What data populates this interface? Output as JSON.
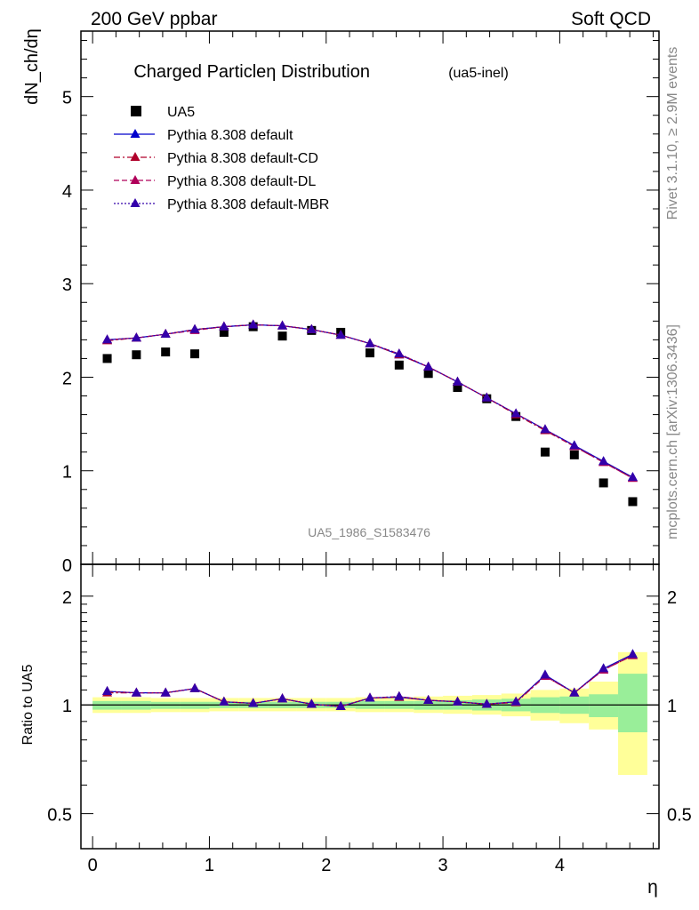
{
  "header": {
    "left": "200 GeV ppbar",
    "right": "Soft QCD"
  },
  "side_text": {
    "rivet": "Rivet 3.1.10, ≥ 2.9M events",
    "mcplots": "mcplots.cern.ch [arXiv:1306.3436]"
  },
  "chart_data": [
    {
      "type": "scatter",
      "title": "Charged Particleη Distribution",
      "subtitle": "(ua5-inel)",
      "ylabel": "dN_ch/dη",
      "xlabel": "η",
      "watermark": "UA5_1986_S1583476",
      "xlim": [
        -0.1,
        4.85
      ],
      "ylim": [
        0,
        5.7
      ],
      "yticks": [
        0,
        1,
        2,
        3,
        4,
        5
      ],
      "xticks": [
        0,
        1,
        2,
        3,
        4
      ],
      "x": [
        0.125,
        0.375,
        0.625,
        0.875,
        1.125,
        1.375,
        1.625,
        1.875,
        2.125,
        2.375,
        2.625,
        2.875,
        3.125,
        3.375,
        3.625,
        3.875,
        4.125,
        4.375,
        4.625
      ],
      "legend": {
        "placement": "top-left",
        "entries": [
          {
            "label": "UA5",
            "color": "#000000",
            "style": "square"
          },
          {
            "label": "Pythia 8.308 default",
            "color": "#0000cc",
            "style": "solid"
          },
          {
            "label": "Pythia 8.308 default-CD",
            "color": "#b0002a",
            "style": "dashdot"
          },
          {
            "label": "Pythia 8.308 default-DL",
            "color": "#b0005a",
            "style": "dashed"
          },
          {
            "label": "Pythia 8.308 default-MBR",
            "color": "#3300aa",
            "style": "dotted"
          }
        ]
      },
      "series": [
        {
          "name": "UA5",
          "values": [
            2.2,
            2.24,
            2.27,
            2.25,
            2.48,
            2.54,
            2.44,
            2.5,
            2.48,
            2.26,
            2.13,
            2.04,
            1.89,
            1.77,
            1.58,
            1.2,
            1.17,
            0.87,
            0.67
          ]
        },
        {
          "name": "Pythia 8.308 default",
          "values": [
            2.4,
            2.42,
            2.46,
            2.51,
            2.54,
            2.56,
            2.55,
            2.51,
            2.45,
            2.36,
            2.24,
            2.11,
            1.95,
            1.78,
            1.61,
            1.44,
            1.27,
            1.1,
            0.93
          ]
        },
        {
          "name": "Pythia 8.308 default-CD",
          "values": [
            2.39,
            2.42,
            2.46,
            2.51,
            2.54,
            2.56,
            2.55,
            2.51,
            2.45,
            2.36,
            2.24,
            2.11,
            1.95,
            1.78,
            1.6,
            1.43,
            1.26,
            1.09,
            0.92
          ]
        },
        {
          "name": "Pythia 8.308 default-DL",
          "values": [
            2.4,
            2.42,
            2.46,
            2.5,
            2.54,
            2.56,
            2.55,
            2.51,
            2.45,
            2.36,
            2.25,
            2.11,
            1.95,
            1.78,
            1.61,
            1.44,
            1.26,
            1.09,
            0.92
          ]
        },
        {
          "name": "Pythia 8.308 default-MBR",
          "values": [
            2.4,
            2.42,
            2.46,
            2.51,
            2.54,
            2.56,
            2.55,
            2.51,
            2.45,
            2.36,
            2.25,
            2.11,
            1.95,
            1.78,
            1.61,
            1.44,
            1.27,
            1.1,
            0.93
          ]
        }
      ]
    },
    {
      "type": "line",
      "ylabel": "Ratio to UA5",
      "xlabel": "η",
      "ylim": [
        0.4,
        2.45
      ],
      "yscale": "log",
      "yticks": [
        0.5,
        1,
        2
      ],
      "xticks": [
        0,
        1,
        2,
        3,
        4
      ],
      "x": [
        0.125,
        0.375,
        0.625,
        0.875,
        1.125,
        1.375,
        1.625,
        1.875,
        2.125,
        2.375,
        2.625,
        2.875,
        3.125,
        3.375,
        3.625,
        3.875,
        4.125,
        4.375,
        4.625
      ],
      "band_yellow": {
        "lo": [
          0.95,
          0.95,
          0.955,
          0.955,
          0.96,
          0.96,
          0.96,
          0.96,
          0.96,
          0.955,
          0.955,
          0.95,
          0.945,
          0.94,
          0.93,
          0.905,
          0.89,
          0.855,
          0.64
        ],
        "hi": [
          1.05,
          1.05,
          1.045,
          1.045,
          1.045,
          1.045,
          1.045,
          1.045,
          1.045,
          1.05,
          1.05,
          1.055,
          1.06,
          1.065,
          1.075,
          1.1,
          1.11,
          1.16,
          1.4
        ]
      },
      "band_green": {
        "lo": [
          0.97,
          0.97,
          0.975,
          0.975,
          0.98,
          0.98,
          0.98,
          0.98,
          0.98,
          0.975,
          0.975,
          0.97,
          0.97,
          0.965,
          0.96,
          0.95,
          0.945,
          0.925,
          0.84
        ],
        "hi": [
          1.025,
          1.025,
          1.02,
          1.02,
          1.02,
          1.02,
          1.02,
          1.02,
          1.02,
          1.025,
          1.025,
          1.025,
          1.03,
          1.035,
          1.04,
          1.05,
          1.055,
          1.07,
          1.22
        ]
      },
      "series": [
        {
          "name": "Pythia 8.308 default",
          "values": [
            1.09,
            1.08,
            1.08,
            1.11,
            1.02,
            1.01,
            1.04,
            1.005,
            0.99,
            1.045,
            1.05,
            1.03,
            1.02,
            1.005,
            1.02,
            1.21,
            1.08,
            1.26,
            1.38
          ]
        },
        {
          "name": "Pythia 8.308 default-CD",
          "values": [
            1.08,
            1.08,
            1.08,
            1.11,
            1.02,
            1.01,
            1.04,
            1.005,
            0.99,
            1.045,
            1.05,
            1.03,
            1.02,
            1.005,
            1.015,
            1.2,
            1.08,
            1.25,
            1.37
          ]
        },
        {
          "name": "Pythia 8.308 default-DL",
          "values": [
            1.09,
            1.08,
            1.08,
            1.11,
            1.02,
            1.01,
            1.04,
            1.005,
            0.99,
            1.045,
            1.055,
            1.03,
            1.02,
            1.005,
            1.02,
            1.2,
            1.08,
            1.25,
            1.37
          ]
        },
        {
          "name": "Pythia 8.308 default-MBR",
          "values": [
            1.09,
            1.08,
            1.08,
            1.11,
            1.02,
            1.01,
            1.04,
            1.005,
            0.99,
            1.045,
            1.055,
            1.03,
            1.02,
            1.005,
            1.02,
            1.21,
            1.08,
            1.26,
            1.38
          ]
        }
      ]
    }
  ]
}
